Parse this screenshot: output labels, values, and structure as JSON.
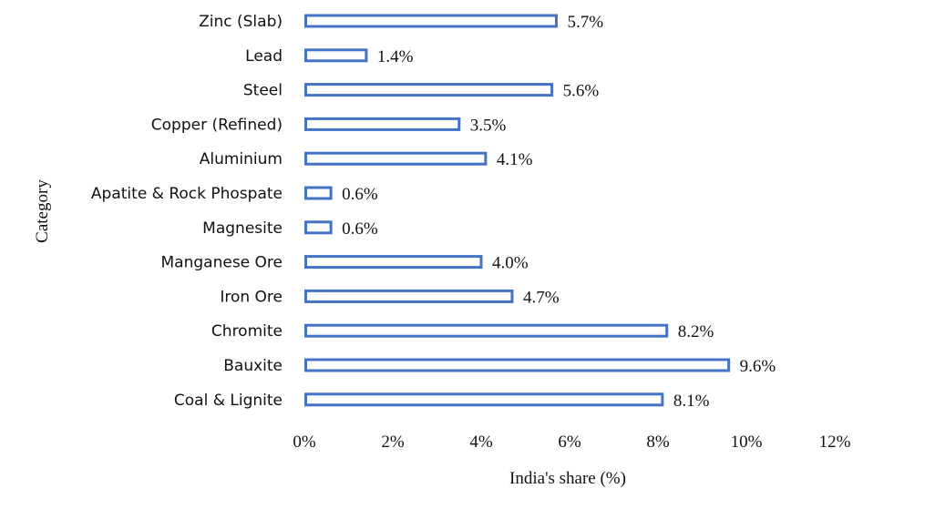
{
  "chart_data": {
    "type": "bar",
    "orientation": "horizontal",
    "categories": [
      "Zinc (Slab)",
      "Lead",
      "Steel",
      "Copper (Refined)",
      "Aluminium",
      "Apatite & Rock Phospate",
      "Magnesite",
      "Manganese Ore",
      "Iron Ore",
      "Chromite",
      "Bauxite",
      "Coal & Lignite"
    ],
    "values": [
      5.7,
      1.4,
      5.6,
      3.5,
      4.1,
      0.6,
      0.6,
      4.0,
      4.7,
      8.2,
      9.6,
      8.1
    ],
    "value_labels": [
      "5.7%",
      "1.4%",
      "5.6%",
      "3.5%",
      "4.1%",
      "0.6%",
      "0.6%",
      "4.0%",
      "4.7%",
      "8.2%",
      "9.6%",
      "8.1%"
    ],
    "xlim": [
      0,
      12
    ],
    "x_ticks": [
      0,
      2,
      4,
      6,
      8,
      10,
      12
    ],
    "x_tick_labels": [
      "0%",
      "2%",
      "4%",
      "6%",
      "8%",
      "10%",
      "12%"
    ],
    "xlabel": "India's share (%)",
    "ylabel": "Category",
    "grid": false,
    "legend": "none",
    "bar_color": "#4472C4",
    "bar_fill": "#ffffff"
  }
}
